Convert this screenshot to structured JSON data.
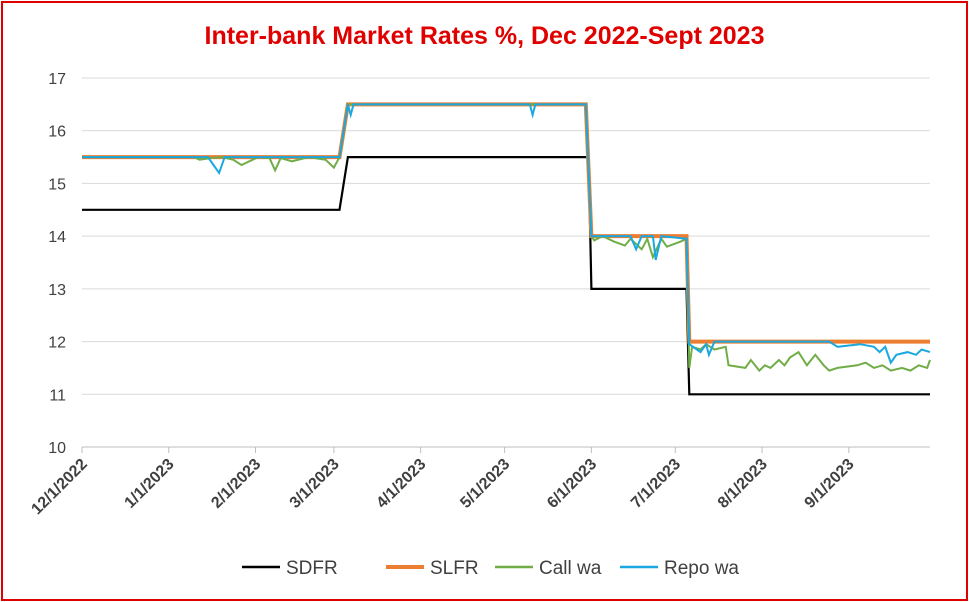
{
  "chart_data": {
    "type": "line",
    "title": "Inter-bank Market Rates %, Dec 2022-Sept 2023",
    "xlabel": "",
    "ylabel": "",
    "ylim": [
      10,
      17
    ],
    "yticks": [
      10,
      11,
      12,
      13,
      14,
      15,
      16,
      17
    ],
    "xlim": [
      "2022-12-01",
      "2023-09-30"
    ],
    "xticks": [
      "12/1/2022",
      "1/1/2023",
      "2/1/2023",
      "3/1/2023",
      "4/1/2023",
      "5/1/2023",
      "6/1/2023",
      "7/1/2023",
      "8/1/2023",
      "9/1/2023"
    ],
    "xtick_dates": [
      "2022-12-01",
      "2023-01-01",
      "2023-02-01",
      "2023-03-01",
      "2023-04-01",
      "2023-05-01",
      "2023-06-01",
      "2023-07-01",
      "2023-08-01",
      "2023-09-01"
    ],
    "grid": "horizontal",
    "legend_position": "bottom",
    "series": [
      {
        "name": "SDFR",
        "color": "#000000",
        "points": [
          [
            "2022-12-01",
            14.5
          ],
          [
            "2023-03-03",
            14.5
          ],
          [
            "2023-03-06",
            15.5
          ],
          [
            "2023-05-31",
            15.5
          ],
          [
            "2023-06-01",
            13.0
          ],
          [
            "2023-07-05",
            13.0
          ],
          [
            "2023-07-06",
            11.0
          ],
          [
            "2023-09-30",
            11.0
          ]
        ]
      },
      {
        "name": "SLFR",
        "color": "#ed7d31",
        "points": [
          [
            "2022-12-01",
            15.5
          ],
          [
            "2023-03-03",
            15.5
          ],
          [
            "2023-03-06",
            16.5
          ],
          [
            "2023-05-30",
            16.5
          ],
          [
            "2023-06-01",
            14.0
          ],
          [
            "2023-07-05",
            14.0
          ],
          [
            "2023-07-06",
            12.0
          ],
          [
            "2023-09-30",
            12.0
          ]
        ]
      },
      {
        "name": "Call wa",
        "color": "#70ad47",
        "points": [
          [
            "2022-12-01",
            15.5
          ],
          [
            "2023-01-10",
            15.5
          ],
          [
            "2023-01-12",
            15.45
          ],
          [
            "2023-01-16",
            15.48
          ],
          [
            "2023-01-20",
            15.5
          ],
          [
            "2023-01-24",
            15.45
          ],
          [
            "2023-01-27",
            15.35
          ],
          [
            "2023-01-31",
            15.45
          ],
          [
            "2023-02-02",
            15.5
          ],
          [
            "2023-02-06",
            15.48
          ],
          [
            "2023-02-08",
            15.25
          ],
          [
            "2023-02-10",
            15.48
          ],
          [
            "2023-02-14",
            15.42
          ],
          [
            "2023-02-20",
            15.5
          ],
          [
            "2023-02-26",
            15.45
          ],
          [
            "2023-03-01",
            15.3
          ],
          [
            "2023-03-03",
            15.5
          ],
          [
            "2023-03-06",
            16.5
          ],
          [
            "2023-05-30",
            16.5
          ],
          [
            "2023-06-01",
            14.0
          ],
          [
            "2023-06-02",
            13.92
          ],
          [
            "2023-06-05",
            14.0
          ],
          [
            "2023-06-09",
            13.9
          ],
          [
            "2023-06-13",
            13.82
          ],
          [
            "2023-06-15",
            13.95
          ],
          [
            "2023-06-19",
            13.75
          ],
          [
            "2023-06-21",
            13.95
          ],
          [
            "2023-06-23",
            13.6
          ],
          [
            "2023-06-26",
            13.95
          ],
          [
            "2023-06-28",
            13.8
          ],
          [
            "2023-07-03",
            13.9
          ],
          [
            "2023-07-05",
            13.95
          ],
          [
            "2023-07-06",
            11.5
          ],
          [
            "2023-07-07",
            11.9
          ],
          [
            "2023-07-10",
            11.85
          ],
          [
            "2023-07-12",
            11.95
          ],
          [
            "2023-07-15",
            11.85
          ],
          [
            "2023-07-19",
            11.9
          ],
          [
            "2023-07-20",
            11.55
          ],
          [
            "2023-07-26",
            11.5
          ],
          [
            "2023-07-28",
            11.65
          ],
          [
            "2023-07-31",
            11.45
          ],
          [
            "2023-08-02",
            11.55
          ],
          [
            "2023-08-04",
            11.5
          ],
          [
            "2023-08-07",
            11.65
          ],
          [
            "2023-08-09",
            11.55
          ],
          [
            "2023-08-11",
            11.7
          ],
          [
            "2023-08-14",
            11.8
          ],
          [
            "2023-08-17",
            11.55
          ],
          [
            "2023-08-20",
            11.75
          ],
          [
            "2023-08-23",
            11.55
          ],
          [
            "2023-08-25",
            11.45
          ],
          [
            "2023-08-28",
            11.5
          ],
          [
            "2023-09-04",
            11.55
          ],
          [
            "2023-09-07",
            11.6
          ],
          [
            "2023-09-10",
            11.5
          ],
          [
            "2023-09-13",
            11.55
          ],
          [
            "2023-09-16",
            11.45
          ],
          [
            "2023-09-20",
            11.5
          ],
          [
            "2023-09-23",
            11.45
          ],
          [
            "2023-09-26",
            11.55
          ],
          [
            "2023-09-29",
            11.5
          ],
          [
            "2023-09-30",
            11.65
          ]
        ]
      },
      {
        "name": "Repo wa",
        "color": "#1aa8e0",
        "points": [
          [
            "2022-12-01",
            15.5
          ],
          [
            "2023-01-15",
            15.5
          ],
          [
            "2023-01-17",
            15.35
          ],
          [
            "2023-01-19",
            15.2
          ],
          [
            "2023-01-21",
            15.5
          ],
          [
            "2023-03-03",
            15.5
          ],
          [
            "2023-03-06",
            16.5
          ],
          [
            "2023-03-07",
            16.3
          ],
          [
            "2023-03-08",
            16.5
          ],
          [
            "2023-05-10",
            16.5
          ],
          [
            "2023-05-11",
            16.3
          ],
          [
            "2023-05-12",
            16.5
          ],
          [
            "2023-05-30",
            16.5
          ],
          [
            "2023-06-01",
            14.0
          ],
          [
            "2023-06-15",
            14.0
          ],
          [
            "2023-06-17",
            13.75
          ],
          [
            "2023-06-19",
            14.0
          ],
          [
            "2023-06-23",
            14.0
          ],
          [
            "2023-06-24",
            13.55
          ],
          [
            "2023-06-26",
            14.0
          ],
          [
            "2023-07-05",
            13.95
          ],
          [
            "2023-07-06",
            11.95
          ],
          [
            "2023-07-10",
            11.8
          ],
          [
            "2023-07-12",
            11.95
          ],
          [
            "2023-07-13",
            11.75
          ],
          [
            "2023-07-15",
            12.0
          ],
          [
            "2023-08-25",
            12.0
          ],
          [
            "2023-08-28",
            11.9
          ],
          [
            "2023-09-05",
            11.95
          ],
          [
            "2023-09-10",
            11.9
          ],
          [
            "2023-09-12",
            11.8
          ],
          [
            "2023-09-14",
            11.9
          ],
          [
            "2023-09-16",
            11.6
          ],
          [
            "2023-09-18",
            11.75
          ],
          [
            "2023-09-22",
            11.8
          ],
          [
            "2023-09-25",
            11.75
          ],
          [
            "2023-09-27",
            11.85
          ],
          [
            "2023-09-30",
            11.8
          ]
        ]
      }
    ]
  }
}
